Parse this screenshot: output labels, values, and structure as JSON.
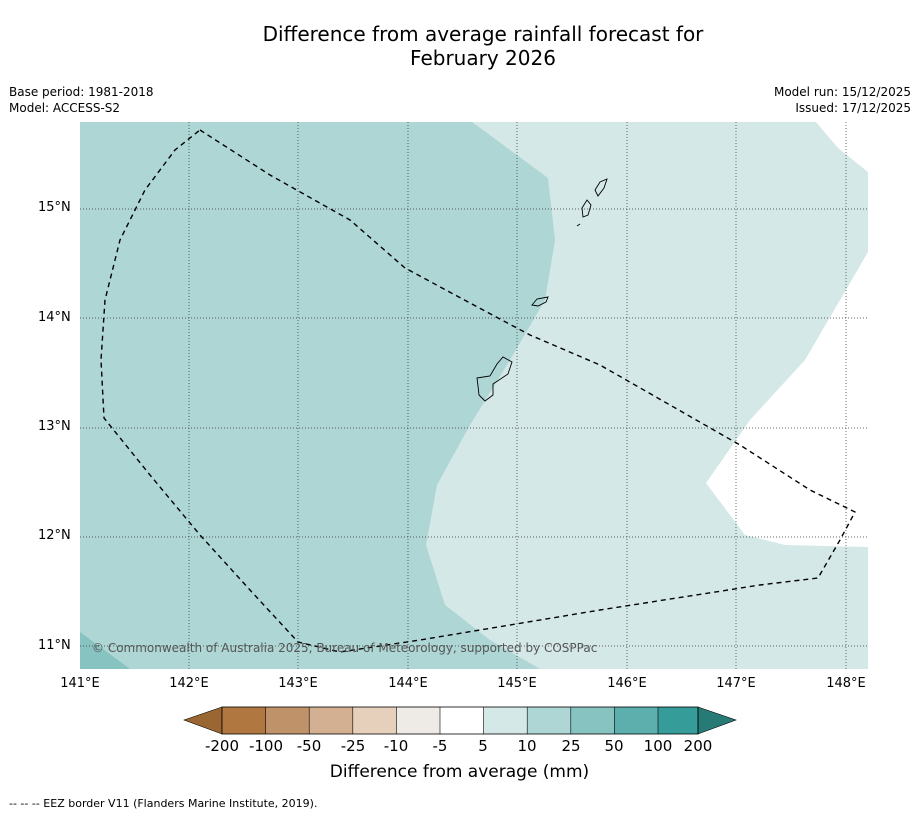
{
  "title_line1": "Difference from average rainfall forecast for",
  "title_line2": "February 2026",
  "meta": {
    "base_period": "Base period: 1981-2018",
    "model": "Model: ACCESS-S2",
    "model_run": "Model run: 15/12/2025",
    "issued": "Issued: 17/12/2025"
  },
  "latitude_labels": [
    "15°N",
    "14°N",
    "13°N",
    "12°N",
    "11°N"
  ],
  "longitude_labels": [
    "141°E",
    "142°E",
    "143°E",
    "144°E",
    "145°E",
    "146°E",
    "147°E",
    "148°E"
  ],
  "colorbar": {
    "ticks": [
      "-200",
      "-100",
      "-50",
      "-25",
      "-10",
      "-5",
      "5",
      "10",
      "25",
      "50",
      "100",
      "200"
    ],
    "colors": [
      "#9a6632",
      "#b07840",
      "#c0926a",
      "#d4b092",
      "#e6d0bc",
      "#eeeae6",
      "#ffffff",
      "#d4e8e7",
      "#aed6d5",
      "#86c3c1",
      "#5cafad",
      "#359c99",
      "#277b77"
    ],
    "label": "Difference from average (mm)"
  },
  "footer": "--  --  -- EEZ border V11 (Flanders Marine Institute, 2019).",
  "copyright": "© Commonwealth of Australia 2025, Bureau of Meteorology, supported by COSPPac",
  "legend_colors": {
    "band_10_25": "#aed6d5",
    "band_5_10": "#d4e8e7",
    "band_25_50": "#86c3c1",
    "band_neutral": "#ffffff"
  }
}
